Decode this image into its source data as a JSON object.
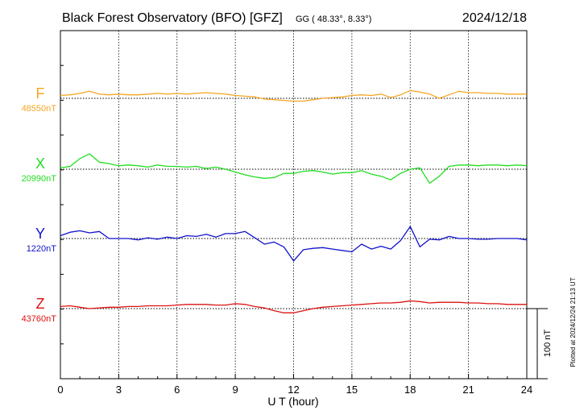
{
  "header": {
    "title": "Black Forest Observatory (BFO)  [GFZ]",
    "coords": "GG ( 48.33°,   8.33°)",
    "date": "2024/12/18"
  },
  "plotted_note": "Plotted at 2024/12/24 21:13 UT",
  "scale_label": "100 nT",
  "colors": {
    "F": "#f5a623",
    "X": "#22dd22",
    "Y": "#1111cc",
    "Z": "#dd1111"
  },
  "chart_data": {
    "type": "line",
    "xlabel": "U T (hour)",
    "xlim": [
      0,
      24
    ],
    "xticks": [
      "0",
      "3",
      "6",
      "9",
      "12",
      "15",
      "18",
      "21",
      "24"
    ],
    "scale_nT": 100,
    "grid": true,
    "series": [
      {
        "name": "F",
        "baseline_label": "48550nT",
        "baseline_nT": 48550,
        "x": [
          0,
          0.5,
          1,
          1.5,
          2,
          2.5,
          3,
          3.5,
          4,
          4.5,
          5,
          5.5,
          6,
          6.5,
          7,
          7.5,
          8,
          8.5,
          9,
          9.5,
          10,
          10.5,
          11,
          11.5,
          12,
          12.5,
          13,
          13.5,
          14,
          14.5,
          15,
          15.5,
          16,
          16.5,
          17,
          17.5,
          18,
          18.5,
          19,
          19.5,
          20,
          20.5,
          21,
          21.5,
          22,
          22.5,
          23,
          23.5,
          24
        ],
        "y": [
          48554,
          48555,
          48557,
          48560,
          48556,
          48555,
          48556,
          48555,
          48555,
          48556,
          48557,
          48556,
          48557,
          48556,
          48557,
          48558,
          48557,
          48556,
          48554,
          48553,
          48552,
          48549,
          48548,
          48547,
          48546,
          48546,
          48548,
          48550,
          48551,
          48552,
          48554,
          48555,
          48554,
          48556,
          48551,
          48555,
          48561,
          48559,
          48556,
          48550,
          48555,
          48560,
          48558,
          48558,
          48557,
          48557,
          48556,
          48556,
          48556
        ]
      },
      {
        "name": "X",
        "baseline_label": "20990nT",
        "baseline_nT": 20990,
        "x": [
          0,
          0.5,
          1,
          1.5,
          2,
          2.5,
          3,
          3.5,
          4,
          4.5,
          5,
          5.5,
          6,
          6.5,
          7,
          7.5,
          8,
          8.5,
          9,
          9.5,
          10,
          10.5,
          11,
          11.5,
          12,
          12.5,
          13,
          13.5,
          14,
          14.5,
          15,
          15.5,
          16,
          16.5,
          17,
          17.5,
          18,
          18.5,
          19,
          19.5,
          20,
          20.5,
          21,
          21.5,
          22,
          22.5,
          23,
          23.5,
          24
        ],
        "y": [
          20992,
          20994,
          21005,
          21012,
          21000,
          20998,
          20995,
          20996,
          20995,
          20993,
          20996,
          20994,
          20994,
          20993,
          20994,
          20991,
          20993,
          20990,
          20986,
          20982,
          20979,
          20977,
          20978,
          20984,
          20984,
          20987,
          20988,
          20986,
          20983,
          20985,
          20985,
          20988,
          20983,
          20980,
          20975,
          20984,
          20990,
          20992,
          20970,
          20980,
          20994,
          20996,
          20996,
          20995,
          20996,
          20996,
          20995,
          20996,
          20995
        ]
      },
      {
        "name": "Y",
        "baseline_label": "1220nT",
        "baseline_nT": 1220,
        "x": [
          0,
          0.5,
          1,
          1.5,
          2,
          2.5,
          3,
          3.5,
          4,
          4.5,
          5,
          5.5,
          6,
          6.5,
          7,
          7.5,
          8,
          8.5,
          9,
          9.5,
          10,
          10.5,
          11,
          11.5,
          12,
          12.5,
          13,
          13.5,
          14,
          14.5,
          15,
          15.5,
          16,
          16.5,
          17,
          17.5,
          18,
          18.5,
          19,
          19.5,
          20,
          20.5,
          21,
          21.5,
          22,
          22.5,
          23,
          23.5,
          24
        ],
        "y": [
          1224,
          1229,
          1231,
          1228,
          1230,
          1220,
          1220,
          1220,
          1218,
          1221,
          1219,
          1222,
          1220,
          1224,
          1223,
          1226,
          1222,
          1227,
          1227,
          1230,
          1221,
          1212,
          1215,
          1208,
          1188,
          1204,
          1206,
          1207,
          1205,
          1203,
          1201,
          1212,
          1205,
          1209,
          1205,
          1217,
          1237,
          1208,
          1219,
          1218,
          1223,
          1220,
          1220,
          1219,
          1219,
          1220,
          1220,
          1220,
          1218
        ]
      },
      {
        "name": "Z",
        "baseline_label": "43760nT",
        "baseline_nT": 43760,
        "x": [
          0,
          0.5,
          1,
          1.5,
          2,
          2.5,
          3,
          3.5,
          4,
          4.5,
          5,
          5.5,
          6,
          6.5,
          7,
          7.5,
          8,
          8.5,
          9,
          9.5,
          10,
          10.5,
          11,
          11.5,
          12,
          12.5,
          13,
          13.5,
          14,
          14.5,
          15,
          15.5,
          16,
          16.5,
          17,
          17.5,
          18,
          18.5,
          19,
          19.5,
          20,
          20.5,
          21,
          21.5,
          22,
          22.5,
          23,
          23.5,
          24
        ],
        "y": [
          43763,
          43764,
          43762,
          43760,
          43761,
          43762,
          43762,
          43763,
          43763,
          43764,
          43764,
          43764,
          43765,
          43766,
          43766,
          43766,
          43765,
          43765,
          43767,
          43766,
          43763,
          43761,
          43757,
          43754,
          43754,
          43757,
          43760,
          43762,
          43763,
          43764,
          43765,
          43766,
          43767,
          43768,
          43768,
          43769,
          43771,
          43770,
          43768,
          43769,
          43769,
          43769,
          43768,
          43768,
          43767,
          43767,
          43766,
          43766,
          43766
        ]
      }
    ]
  }
}
